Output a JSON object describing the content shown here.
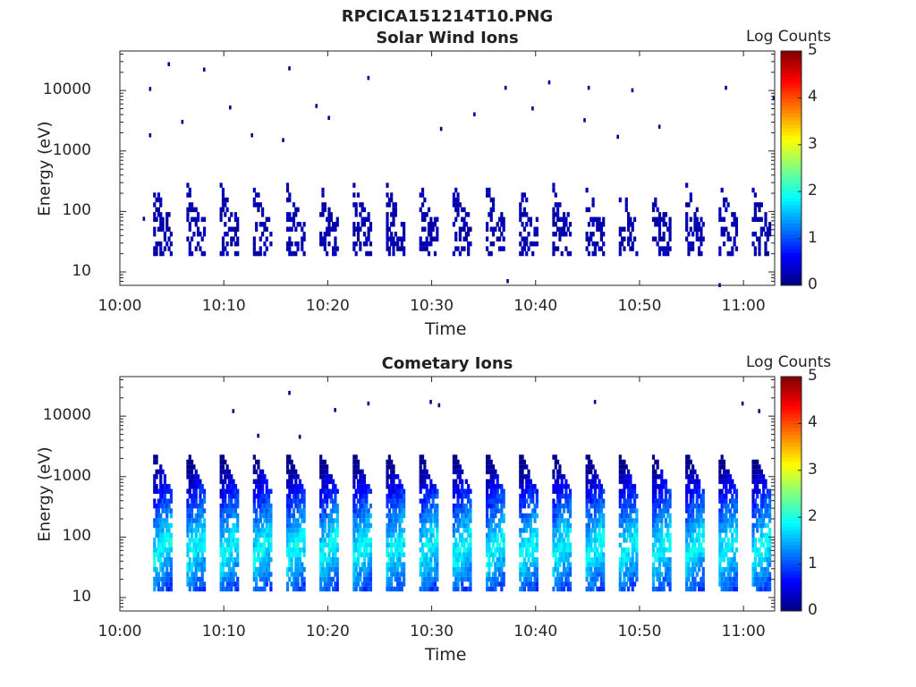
{
  "page_title": "RPCICA151214T10.PNG",
  "chart_data": [
    {
      "type": "heatmap",
      "title": "Solar Wind Ions",
      "xlabel": "Time",
      "ylabel": "Energy (eV)",
      "x_ticks": [
        "10:00",
        "10:10",
        "10:20",
        "10:30",
        "10:40",
        "10:50",
        "11:00"
      ],
      "x_range_min": [
        0,
        63
      ],
      "y_ticks": [
        "10",
        "100",
        "1000",
        "10000"
      ],
      "y_scale": "log",
      "y_range": [
        6,
        45000
      ],
      "colorbar": {
        "label": "Log Counts",
        "ticks": [
          "0",
          "1",
          "2",
          "3",
          "4",
          "5"
        ],
        "range": [
          0,
          5
        ],
        "colormap": "jet"
      },
      "sweep_start_min": [
        3.2,
        6.4,
        9.6,
        12.8,
        16.0,
        19.2,
        22.4,
        25.6,
        28.8,
        32.0,
        35.2,
        38.4,
        41.6,
        44.8,
        48.0,
        51.2,
        54.4,
        57.6,
        60.8
      ],
      "sweep_energy_range_ev": [
        17,
        300
      ],
      "sweep_peak_log_counts": 0.3,
      "sparse_points": [
        {
          "t": 4.6,
          "e": 27000
        },
        {
          "t": 2.8,
          "e": 10500
        },
        {
          "t": 8.0,
          "e": 22000
        },
        {
          "t": 16.2,
          "e": 23000
        },
        {
          "t": 23.8,
          "e": 16000
        },
        {
          "t": 5.9,
          "e": 3000
        },
        {
          "t": 10.5,
          "e": 5200
        },
        {
          "t": 18.8,
          "e": 5500
        },
        {
          "t": 20.0,
          "e": 3500
        },
        {
          "t": 2.8,
          "e": 1800
        },
        {
          "t": 37.0,
          "e": 11000
        },
        {
          "t": 41.2,
          "e": 13500
        },
        {
          "t": 45.0,
          "e": 11000
        },
        {
          "t": 49.2,
          "e": 10000
        },
        {
          "t": 58.2,
          "e": 11000
        },
        {
          "t": 62.8,
          "e": 7500
        },
        {
          "t": 34.0,
          "e": 4000
        },
        {
          "t": 39.6,
          "e": 5000
        },
        {
          "t": 44.6,
          "e": 3200
        },
        {
          "t": 47.8,
          "e": 1700
        },
        {
          "t": 51.8,
          "e": 2500
        },
        {
          "t": 15.6,
          "e": 1500
        },
        {
          "t": 12.6,
          "e": 1800
        },
        {
          "t": 30.8,
          "e": 2300
        },
        {
          "t": 2.2,
          "e": 75
        },
        {
          "t": 37.2,
          "e": 7
        },
        {
          "t": 57.6,
          "e": 6
        }
      ]
    },
    {
      "type": "heatmap",
      "title": "Cometary Ions",
      "xlabel": "Time",
      "ylabel": "Energy (eV)",
      "x_ticks": [
        "10:00",
        "10:10",
        "10:20",
        "10:30",
        "10:40",
        "10:50",
        "11:00"
      ],
      "x_range_min": [
        0,
        63
      ],
      "y_ticks": [
        "10",
        "100",
        "1000",
        "10000"
      ],
      "y_scale": "log",
      "y_range": [
        6,
        45000
      ],
      "colorbar": {
        "label": "Log Counts",
        "ticks": [
          "0",
          "1",
          "2",
          "3",
          "4",
          "5"
        ],
        "range": [
          0,
          5
        ],
        "colormap": "jet"
      },
      "sweep_start_min": [
        3.2,
        6.4,
        9.6,
        12.8,
        16.0,
        19.2,
        22.4,
        25.6,
        28.8,
        32.0,
        35.2,
        38.4,
        41.6,
        44.8,
        48.0,
        51.2,
        54.4,
        57.6,
        60.8
      ],
      "sweep_energy_range_ev": [
        12,
        2500
      ],
      "sweep_peak_energy_ev": 45,
      "sweep_peak_log_counts": 1.9,
      "sparse_points": [
        {
          "t": 16.2,
          "e": 24000
        },
        {
          "t": 10.8,
          "e": 12000
        },
        {
          "t": 20.6,
          "e": 12500
        },
        {
          "t": 23.8,
          "e": 16000
        },
        {
          "t": 29.8,
          "e": 17000
        },
        {
          "t": 30.6,
          "e": 15000
        },
        {
          "t": 45.6,
          "e": 17000
        },
        {
          "t": 59.8,
          "e": 16000
        },
        {
          "t": 61.4,
          "e": 12000
        },
        {
          "t": 13.2,
          "e": 4700
        },
        {
          "t": 17.2,
          "e": 4500
        }
      ]
    }
  ]
}
